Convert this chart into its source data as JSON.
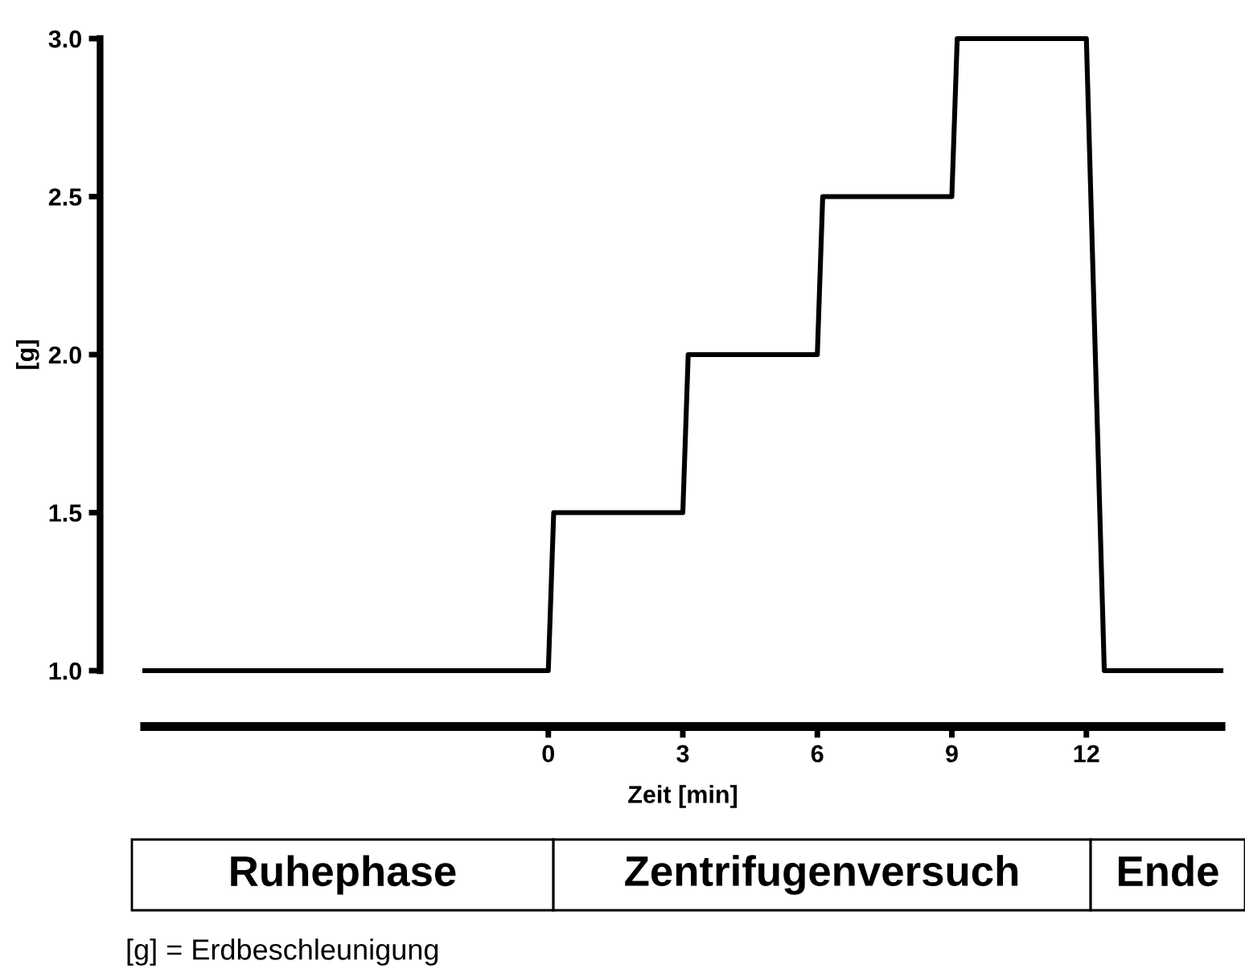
{
  "chart_data": {
    "type": "line",
    "xlabel": "Zeit [min]",
    "ylabel": "[g]",
    "series": [
      {
        "color": "#000000",
        "x": [
          -9,
          0,
          0.12,
          3,
          3.12,
          6,
          6.12,
          9,
          9.12,
          12,
          12.4,
          15
        ],
        "values": [
          1.0,
          1.0,
          1.5,
          1.5,
          2.0,
          2.0,
          2.5,
          2.5,
          3.0,
          3.0,
          1.0,
          1.0
        ]
      }
    ],
    "xlim": [
      -9,
      15
    ],
    "xticks": [
      0,
      3,
      6,
      9,
      12
    ],
    "ylim": [
      1.0,
      3.0
    ],
    "yticks": [
      {
        "value": 1.0,
        "label": "1.0"
      },
      {
        "value": 1.5,
        "label": "1.5"
      },
      {
        "value": 2.0,
        "label": "2.0"
      },
      {
        "value": 2.5,
        "label": "2.5"
      },
      {
        "value": 3.0,
        "label": "3.0"
      }
    ],
    "grid": false,
    "legend": false,
    "marker": "none",
    "line_style": "solid",
    "annotations": [
      "Ruhephase",
      "Zentrifugenversuch",
      "Ende",
      "[g] = Erdbeschleunigung"
    ]
  }
}
